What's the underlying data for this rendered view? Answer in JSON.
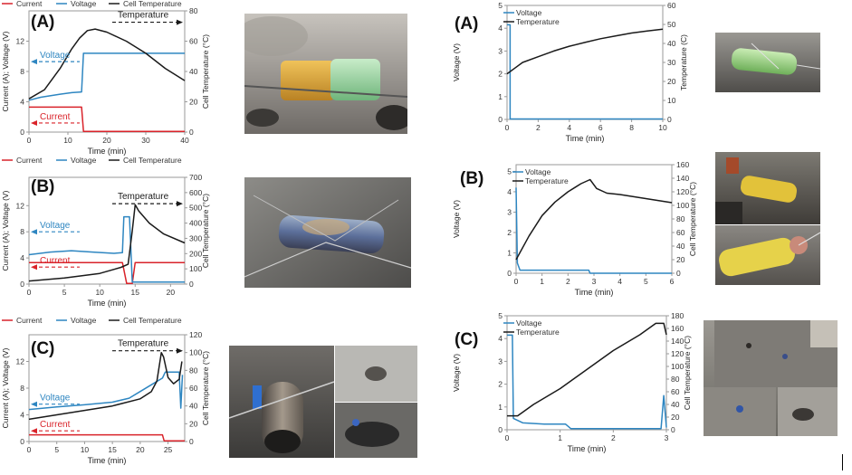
{
  "colors": {
    "current": "#d9232a",
    "voltage": "#2e86c1",
    "temperature": "#1a1a1a",
    "axis": "#9a9a9a"
  },
  "chart_data": [
    {
      "type": "line",
      "panel_label": "(A)",
      "legend": [
        "Current",
        "Voltage",
        "Cell Temperature"
      ],
      "xlabel": "Time (min)",
      "ylabel": "Current (A); Voltage (V)",
      "y2label": "Cell Temperature (°C)",
      "xlim": [
        0,
        40
      ],
      "ylim": [
        0,
        16
      ],
      "y2lim": [
        0,
        80
      ],
      "xticks": [
        0,
        10,
        20,
        30,
        40
      ],
      "yticks": [
        0,
        4,
        8,
        12
      ],
      "y2ticks": [
        0,
        20,
        40,
        60,
        80
      ],
      "series": [
        {
          "name": "Current",
          "axis": "left",
          "points": [
            [
              0,
              3.3
            ],
            [
              13.5,
              3.3
            ],
            [
              14,
              0.1
            ],
            [
              40,
              0.1
            ]
          ]
        },
        {
          "name": "Voltage",
          "axis": "left",
          "points": [
            [
              0,
              4.2
            ],
            [
              3,
              4.6
            ],
            [
              8,
              5
            ],
            [
              11,
              5.2
            ],
            [
              13.5,
              5.3
            ],
            [
              14,
              10.4
            ],
            [
              40,
              10.4
            ]
          ]
        },
        {
          "name": "Cell Temperature",
          "axis": "right",
          "points": [
            [
              0,
              22
            ],
            [
              4,
              28
            ],
            [
              8,
              42
            ],
            [
              11,
              55
            ],
            [
              13,
              62
            ],
            [
              15,
              67
            ],
            [
              17,
              68
            ],
            [
              20,
              66
            ],
            [
              25,
              60
            ],
            [
              30,
              52
            ],
            [
              35,
              42
            ],
            [
              40,
              34
            ]
          ]
        }
      ],
      "annotations": [
        {
          "text": "Voltage",
          "kind": "left",
          "y": 9.3
        },
        {
          "text": "Current",
          "kind": "left",
          "y": 1.2
        },
        {
          "text": "Temperature",
          "kind": "right",
          "y": 14.5
        }
      ]
    },
    {
      "type": "line",
      "panel_label": "(B)",
      "legend": [
        "Current",
        "Voltage",
        "Cell Temperature"
      ],
      "xlabel": "Time (min)",
      "ylabel": "Current (A); Voltage (V)",
      "y2label": "Cell Temperature (°C)",
      "xlim": [
        0,
        22
      ],
      "ylim": [
        0,
        16.33
      ],
      "y2lim": [
        0,
        700
      ],
      "xticks": [
        0,
        5,
        10,
        15,
        20
      ],
      "yticks": [
        0,
        4,
        8,
        12
      ],
      "y2ticks": [
        0,
        100,
        200,
        300,
        400,
        500,
        600,
        700
      ],
      "series": [
        {
          "name": "Current",
          "axis": "left",
          "points": [
            [
              0,
              3.3
            ],
            [
              13.2,
              3.3
            ],
            [
              13.8,
              0.1
            ],
            [
              14.6,
              0.1
            ],
            [
              15,
              3.3
            ],
            [
              22,
              3.3
            ]
          ]
        },
        {
          "name": "Voltage",
          "axis": "left",
          "points": [
            [
              0,
              4.5
            ],
            [
              3,
              4.9
            ],
            [
              6,
              5.1
            ],
            [
              9,
              4.9
            ],
            [
              12,
              4.7
            ],
            [
              13.2,
              4.8
            ],
            [
              13.4,
              10.3
            ],
            [
              14.2,
              10.3
            ],
            [
              14.6,
              0.3
            ],
            [
              15,
              0.3
            ],
            [
              22,
              0.3
            ]
          ]
        },
        {
          "name": "Cell Temperature",
          "axis": "right",
          "points": [
            [
              0,
              20
            ],
            [
              5,
              40
            ],
            [
              10,
              70
            ],
            [
              13,
              110
            ],
            [
              14,
              130
            ],
            [
              14.6,
              350
            ],
            [
              15,
              520
            ],
            [
              15.5,
              480
            ],
            [
              17,
              400
            ],
            [
              19,
              330
            ],
            [
              22,
              270
            ]
          ]
        }
      ],
      "annotations": [
        {
          "text": "Voltage",
          "kind": "left",
          "y": 8.0
        },
        {
          "text": "Current",
          "kind": "left",
          "y": 2.6
        },
        {
          "text": "Temperature",
          "kind": "right",
          "y": 12.3
        }
      ]
    },
    {
      "type": "line",
      "panel_label": "(C)",
      "legend": [
        "Current",
        "Voltage",
        "Cell Temperature"
      ],
      "xlabel": "Time (min)",
      "ylabel": "Current (A); Voltage (V)",
      "y2label": "Cell Temperature (°C)",
      "xlim": [
        0,
        28
      ],
      "ylim": [
        0,
        16
      ],
      "y2lim": [
        0,
        120
      ],
      "xticks": [
        0,
        5,
        10,
        15,
        20,
        25
      ],
      "yticks": [
        0,
        4,
        8,
        12
      ],
      "y2ticks": [
        0,
        20,
        40,
        60,
        80,
        100,
        120
      ],
      "series": [
        {
          "name": "Current",
          "axis": "left",
          "points": [
            [
              0,
              1.0
            ],
            [
              24,
              1.0
            ],
            [
              24.3,
              0.1
            ],
            [
              28,
              0.1
            ]
          ]
        },
        {
          "name": "Voltage",
          "axis": "left",
          "points": [
            [
              0,
              4.8
            ],
            [
              5,
              5.2
            ],
            [
              10,
              5.5
            ],
            [
              15,
              5.9
            ],
            [
              18,
              6.5
            ],
            [
              20,
              7.5
            ],
            [
              22,
              8.5
            ],
            [
              24,
              9.5
            ],
            [
              24.5,
              10.4
            ],
            [
              27,
              10.4
            ],
            [
              27.3,
              5
            ],
            [
              27.6,
              10
            ]
          ]
        },
        {
          "name": "Cell Temperature",
          "axis": "right",
          "points": [
            [
              0,
              25
            ],
            [
              5,
              30
            ],
            [
              10,
              35
            ],
            [
              15,
              40
            ],
            [
              20,
              48
            ],
            [
              22,
              56
            ],
            [
              23,
              68
            ],
            [
              23.8,
              100
            ],
            [
              24.2,
              95
            ],
            [
              25,
              72
            ],
            [
              26,
              65
            ],
            [
              27,
              70
            ],
            [
              27.5,
              90
            ]
          ]
        }
      ],
      "annotations": [
        {
          "text": "Voltage",
          "kind": "left",
          "y": 5.6
        },
        {
          "text": "Current",
          "kind": "left",
          "y": 1.6
        },
        {
          "text": "Temperature",
          "kind": "right",
          "y": 13.6
        }
      ]
    },
    {
      "type": "line",
      "panel_label": "(A)",
      "legend": [
        "Voltage",
        "Temperature"
      ],
      "xlabel": "Time (min)",
      "ylabel": "Voltage (V)",
      "y2label": "Temperature (C)",
      "xlim": [
        0,
        10
      ],
      "ylim": [
        0,
        5
      ],
      "y2lim": [
        0,
        60
      ],
      "xticks": [
        0,
        2,
        4,
        6,
        8,
        10
      ],
      "yticks": [
        0,
        1,
        2,
        3,
        4,
        5
      ],
      "y2ticks": [
        0,
        10,
        20,
        30,
        40,
        50,
        60
      ],
      "series": [
        {
          "name": "Voltage",
          "axis": "left",
          "points": [
            [
              0,
              4.15
            ],
            [
              0.2,
              4.15
            ],
            [
              0.2,
              0.02
            ],
            [
              10,
              0.02
            ]
          ]
        },
        {
          "name": "Temperature",
          "axis": "right",
          "points": [
            [
              0,
              24
            ],
            [
              0.5,
              27
            ],
            [
              1,
              30
            ],
            [
              2,
              33
            ],
            [
              3,
              36
            ],
            [
              4,
              38.5
            ],
            [
              5,
              40.5
            ],
            [
              6,
              42.5
            ],
            [
              7,
              44
            ],
            [
              8,
              45.5
            ],
            [
              9,
              46.5
            ],
            [
              10,
              47.5
            ]
          ]
        }
      ]
    },
    {
      "type": "line",
      "panel_label": "(B)",
      "legend": [
        "Voltage",
        "Temperature"
      ],
      "xlabel": "Time (min)",
      "ylabel": "Voltage (V)",
      "y2label": "Cell Temperature (°C)",
      "xlim": [
        0,
        6
      ],
      "ylim": [
        0,
        5.33
      ],
      "y2lim": [
        0,
        160
      ],
      "xticks": [
        0,
        1,
        2,
        3,
        4,
        5,
        6
      ],
      "yticks": [
        0,
        1,
        2,
        3,
        4,
        5
      ],
      "y2ticks": [
        0,
        20,
        40,
        60,
        80,
        100,
        120,
        140,
        160
      ],
      "series": [
        {
          "name": "Voltage",
          "axis": "left",
          "points": [
            [
              0,
              4.2
            ],
            [
              0.05,
              0.5
            ],
            [
              0.15,
              0.15
            ],
            [
              2.8,
              0.15
            ],
            [
              2.85,
              0
            ],
            [
              6,
              0
            ]
          ]
        },
        {
          "name": "Temperature",
          "axis": "right",
          "points": [
            [
              0,
              20
            ],
            [
              0.5,
              55
            ],
            [
              1,
              85
            ],
            [
              1.5,
              105
            ],
            [
              2,
              120
            ],
            [
              2.5,
              132
            ],
            [
              2.85,
              138
            ],
            [
              3.1,
              125
            ],
            [
              3.5,
              118
            ],
            [
              4,
              116
            ],
            [
              5,
              110
            ],
            [
              6,
              104
            ]
          ]
        }
      ]
    },
    {
      "type": "line",
      "panel_label": "(C)",
      "legend": [
        "Voltage",
        "Temperature"
      ],
      "xlabel": "Time (min)",
      "ylabel": "Voltage (V)",
      "y2label": "Cell Temperature (°C)",
      "xlim": [
        0,
        3
      ],
      "ylim": [
        0,
        5
      ],
      "y2lim": [
        0,
        180
      ],
      "xticks": [
        0,
        1,
        2,
        3
      ],
      "yticks": [
        0,
        1,
        2,
        3,
        4,
        5
      ],
      "y2ticks": [
        0,
        20,
        40,
        60,
        80,
        100,
        120,
        140,
        160,
        180
      ],
      "series": [
        {
          "name": "Voltage",
          "axis": "left",
          "points": [
            [
              0,
              4.15
            ],
            [
              0.1,
              4.15
            ],
            [
              0.12,
              0.5
            ],
            [
              0.3,
              0.3
            ],
            [
              0.7,
              0.25
            ],
            [
              1.1,
              0.25
            ],
            [
              1.2,
              0.05
            ],
            [
              2.9,
              0.05
            ],
            [
              2.95,
              1.5
            ],
            [
              3,
              0.1
            ]
          ]
        },
        {
          "name": "Temperature",
          "axis": "right",
          "points": [
            [
              0,
              22
            ],
            [
              0.2,
              22
            ],
            [
              0.5,
              40
            ],
            [
              1,
              65
            ],
            [
              1.5,
              95
            ],
            [
              2,
              125
            ],
            [
              2.5,
              150
            ],
            [
              2.8,
              168
            ],
            [
              2.95,
              168
            ],
            [
              3,
              150
            ]
          ]
        }
      ]
    }
  ]
}
